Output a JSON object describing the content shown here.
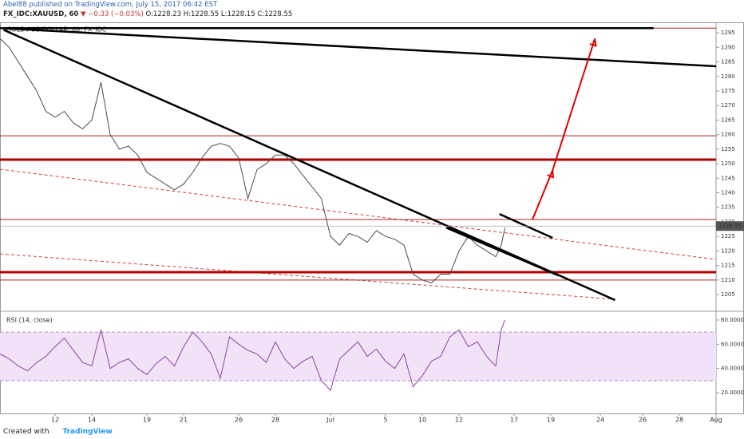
{
  "header": {
    "published": "Abel88 published on TradingView.com, July 15, 2017 06:42 EST",
    "symbol": "FX_IDC:XAUUSD, 60",
    "change": "▼ −0.33 (−0.03%)",
    "ohlc": "O:1228.23 H:1228.55 L:1228.15 C:1228.55"
  },
  "footer": {
    "created": "Created with",
    "brand": "TradingView"
  },
  "chart_data": [
    {
      "type": "line",
      "title": "GOLD / US DOLLAR, 60, FX_IDC",
      "x": [
        0,
        0.5,
        1,
        1.5,
        2,
        2.5,
        3,
        3.5,
        4,
        4.5,
        5,
        5.5,
        6,
        6.5,
        7,
        7.5,
        8,
        8.5,
        9,
        9.5,
        10,
        10.5,
        11,
        11.5,
        12,
        12.5,
        13,
        13.5,
        14,
        14.5,
        15,
        15.5,
        16,
        16.5,
        17,
        17.5,
        18,
        18.5,
        19,
        19.5,
        20,
        20.5,
        21,
        21.5,
        22,
        22.5,
        23,
        23.5,
        24,
        24.5,
        25,
        25.5,
        26,
        26.5,
        27,
        27.3,
        27.5
      ],
      "values": [
        1293,
        1290,
        1285,
        1280,
        1275,
        1268,
        1266,
        1268,
        1264,
        1262,
        1265,
        1278,
        1260,
        1255,
        1256,
        1253,
        1247,
        1245,
        1243,
        1241,
        1243,
        1247,
        1252,
        1256,
        1257,
        1256,
        1252,
        1238,
        1248,
        1250,
        1253,
        1253,
        1250,
        1246,
        1242,
        1238,
        1225,
        1222,
        1226,
        1225,
        1223,
        1227,
        1225,
        1224,
        1222,
        1212,
        1210,
        1209,
        1212,
        1212,
        1220,
        1225,
        1222,
        1220,
        1218,
        1222,
        1228
      ],
      "color": "#4a4a4a",
      "xlim": [
        0,
        39
      ],
      "ylim": [
        1199.8,
        1298.6
      ],
      "yticks": [
        1205,
        1210,
        1215,
        1220,
        1225,
        1230,
        1235,
        1240,
        1245,
        1250,
        1255,
        1260,
        1265,
        1270,
        1275,
        1280,
        1285,
        1290,
        1295
      ],
      "last_price": 1228.55,
      "levels": [
        {
          "value": 1296.6,
          "style": "thin",
          "color": "#b22222"
        },
        {
          "value": 1259.6,
          "style": "thin",
          "color": "#b22222"
        },
        {
          "value": 1251.4,
          "style": "thick",
          "color": "#b00000"
        },
        {
          "value": 1230.8,
          "style": "thin",
          "color": "#b22222"
        },
        {
          "value": 1212.7,
          "style": "thick",
          "color": "#b00000"
        },
        {
          "value": 1210,
          "style": "thin",
          "color": "#b22222"
        }
      ],
      "trendlines": [
        {
          "x": [
            0.2,
            35.6
          ],
          "y": [
            1296.6,
            1296.6
          ],
          "color": "#000000"
        },
        {
          "x": [
            0,
            39
          ],
          "y": [
            1296.6,
            1283.5
          ],
          "color": "#000000"
        },
        {
          "x": [
            0.2,
            33.5
          ],
          "y": [
            1296,
            1203.1
          ],
          "color": "#000000"
        },
        {
          "x": [
            24.3,
            30.4
          ],
          "y": [
            1228,
            1211.6
          ],
          "color": "#000000"
        },
        {
          "x": [
            27.2,
            30.1
          ],
          "y": [
            1232.7,
            1224.5
          ],
          "color": "#000000"
        }
      ],
      "dashed_lines": [
        {
          "x": [
            0,
            39
          ],
          "y": [
            1248.1,
            1217.1
          ],
          "color": "#d04040"
        },
        {
          "x": [
            0,
            33.5
          ],
          "y": [
            1219,
            1203.4
          ],
          "color": "#d04040"
        }
      ],
      "arrows": [
        {
          "x": [
            29,
            30.1
          ],
          "y": [
            1230.8,
            1247.8
          ],
          "color": "#e00000"
        },
        {
          "x": [
            30.1,
            32.4
          ],
          "y": [
            1247.8,
            1293
          ],
          "color": "#e00000"
        }
      ]
    },
    {
      "type": "line",
      "title": "RSI (14, close)",
      "x": [
        0,
        0.5,
        1,
        1.5,
        2,
        2.5,
        3,
        3.5,
        4,
        4.5,
        5,
        5.5,
        6,
        6.5,
        7,
        7.5,
        8,
        8.5,
        9,
        9.5,
        10,
        10.5,
        11,
        11.5,
        12,
        12.5,
        13,
        13.5,
        14,
        14.5,
        15,
        15.5,
        16,
        16.5,
        17,
        17.5,
        18,
        18.5,
        19,
        19.5,
        20,
        20.5,
        21,
        21.5,
        22,
        22.5,
        23,
        23.5,
        24,
        24.5,
        25,
        25.5,
        26,
        26.5,
        27,
        27.3,
        27.5
      ],
      "values": [
        52,
        48,
        42,
        38,
        45,
        50,
        58,
        65,
        55,
        45,
        42,
        72,
        40,
        45,
        48,
        40,
        35,
        44,
        50,
        42,
        58,
        70,
        62,
        52,
        32,
        66,
        60,
        55,
        52,
        45,
        62,
        48,
        40,
        46,
        50,
        30,
        22,
        48,
        55,
        62,
        50,
        56,
        46,
        40,
        52,
        25,
        34,
        46,
        50,
        66,
        72,
        58,
        62,
        50,
        42,
        72,
        80
      ],
      "color": "#8e3fa8",
      "band": [
        30,
        70
      ],
      "band_color": "#f1e2f7",
      "xlim": [
        0,
        39
      ],
      "ylim": [
        2.9,
        85.9
      ],
      "yticks": [
        {
          "value": 20,
          "label": "20.0000"
        },
        {
          "value": 40,
          "label": "40.0000"
        },
        {
          "value": 60,
          "label": "60.0000"
        },
        {
          "value": 80,
          "label": "80.0000"
        }
      ],
      "xticks": [
        {
          "value": 3,
          "label": "12"
        },
        {
          "value": 5,
          "label": "14"
        },
        {
          "value": 8,
          "label": "19"
        },
        {
          "value": 10,
          "label": "21"
        },
        {
          "value": 13,
          "label": "26"
        },
        {
          "value": 15,
          "label": "28"
        },
        {
          "value": 18,
          "label": "Jul"
        },
        {
          "value": 21,
          "label": "5"
        },
        {
          "value": 23,
          "label": "10"
        },
        {
          "value": 25,
          "label": "12"
        },
        {
          "value": 28,
          "label": "17"
        },
        {
          "value": 30,
          "label": "19"
        },
        {
          "value": 32.7,
          "label": "24"
        },
        {
          "value": 35,
          "label": "26"
        },
        {
          "value": 37,
          "label": "28"
        },
        {
          "value": 39,
          "label": "Aug"
        }
      ]
    }
  ]
}
